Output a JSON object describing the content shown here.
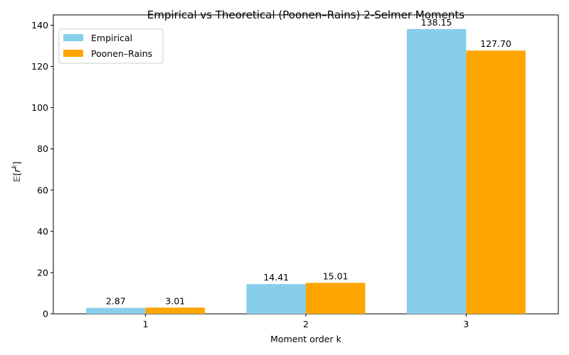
{
  "chart_data": {
    "type": "bar",
    "title": "Empirical vs Theoretical (Poonen–Rains) 2-Selmer Moments",
    "xlabel": "Moment order k",
    "ylabel_parts": {
      "prefix": "𝔼[",
      "var": "r",
      "sup": "k",
      "suffix": "]"
    },
    "categories": [
      "1",
      "2",
      "3"
    ],
    "series": [
      {
        "name": "Empirical",
        "color": "#87ceeb",
        "values": [
          2.87,
          14.41,
          138.15
        ],
        "labels": [
          "2.87",
          "14.41",
          "138.15"
        ]
      },
      {
        "name": "Poonen–Rains",
        "color": "#ffa500",
        "values": [
          3.01,
          15.01,
          127.7
        ],
        "labels": [
          "3.01",
          "15.01",
          "127.70"
        ]
      }
    ],
    "ylim": [
      0,
      145
    ],
    "yticks": [
      0,
      20,
      40,
      60,
      80,
      100,
      120,
      140
    ],
    "ytick_labels": [
      "0",
      "20",
      "40",
      "60",
      "80",
      "100",
      "120",
      "140"
    ],
    "grid": false,
    "legend_position": "top-left"
  }
}
